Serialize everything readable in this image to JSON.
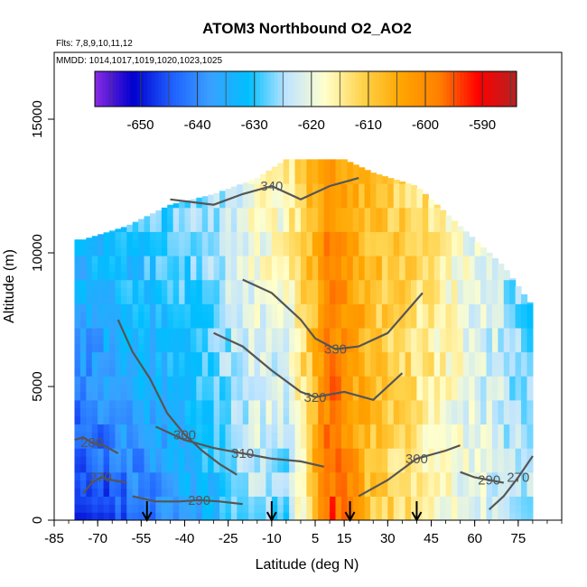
{
  "chart_data": {
    "type": "heatmap",
    "title": "ATOM3 Northbound O2_AO2",
    "flights_label": "Flts: 7,8,9,10,11,12",
    "dates_label": "MMDD: 1014,1017,1019,1020,1023,1025",
    "xlabel": "Latitude (deg N)",
    "ylabel": "Altitude (m)",
    "xlim": [
      -85,
      90
    ],
    "ylim": [
      0,
      17500
    ],
    "x_ticks": [
      "-85",
      "-70",
      "-55",
      "-40",
      "-25",
      "-10",
      "5",
      "15",
      "30",
      "45",
      "60",
      "75"
    ],
    "x_tick_values": [
      -85,
      -70,
      -55,
      -40,
      -25,
      -10,
      5,
      15,
      30,
      45,
      60,
      75
    ],
    "y_ticks": [
      "0",
      "5000",
      "10000",
      "15000"
    ],
    "y_tick_values": [
      0,
      5000,
      10000,
      15000
    ],
    "colorbar": {
      "range": [
        -658,
        -584
      ],
      "ticks": [
        "-650",
        "-640",
        "-630",
        "-620",
        "-610",
        "-600",
        "-590"
      ],
      "tick_values": [
        -650,
        -640,
        -630,
        -620,
        -610,
        -600,
        -590
      ],
      "colors": [
        "#8a2be2",
        "#0000cd",
        "#1e5fff",
        "#3aa0ff",
        "#00bfff",
        "#bfe4ff",
        "#ffffcc",
        "#ffd24a",
        "#ffa500",
        "#ff7f00",
        "#ff0000",
        "#b22222"
      ]
    },
    "field_profile": {
      "note_lat": [
        -75,
        -60,
        -45,
        -30,
        -15,
        -5,
        5,
        10,
        15,
        25,
        40,
        55,
        70,
        80
      ],
      "surface_value": [
        -652,
        -645,
        -640,
        -633,
        -625,
        -630,
        -606,
        -594,
        -598,
        -610,
        -615,
        -620,
        -622,
        -625
      ],
      "upper_value": [
        -632,
        -630,
        -628,
        -625,
        -618,
        -615,
        -607,
        -600,
        -603,
        -608,
        -612,
        -618,
        -625,
        -628
      ],
      "top_altitude": [
        10500,
        11000,
        11800,
        12200,
        12800,
        13500,
        13500,
        13500,
        13500,
        13000,
        12500,
        11000,
        9500,
        8000
      ]
    },
    "contours": [
      {
        "label": "270",
        "lat": [
          -75,
          -72,
          -69,
          -65,
          -60
        ],
        "alt": [
          1000,
          1400,
          1600,
          1500,
          1400
        ]
      },
      {
        "label": "280",
        "lat": [
          -78,
          -75,
          -72,
          -68,
          -63
        ],
        "alt": [
          3000,
          3100,
          2900,
          2800,
          2500
        ]
      },
      {
        "label": "290",
        "lat": [
          -58,
          -50,
          -42,
          -35,
          -28,
          -20
        ],
        "alt": [
          900,
          700,
          700,
          750,
          700,
          600
        ]
      },
      {
        "label": "300",
        "lat": [
          -63,
          -58,
          -52,
          -46,
          -40,
          -34,
          -28,
          -22
        ],
        "alt": [
          7500,
          6300,
          5300,
          4000,
          3200,
          2600,
          2100,
          1700
        ]
      },
      {
        "label": "310",
        "lat": [
          -50,
          -40,
          -30,
          -20,
          -10,
          0,
          8
        ],
        "alt": [
          3500,
          3000,
          2700,
          2500,
          2300,
          2200,
          2000
        ]
      },
      {
        "label": "320",
        "lat": [
          -30,
          -20,
          -10,
          0,
          5,
          15,
          25,
          35
        ],
        "alt": [
          7000,
          6500,
          5600,
          4800,
          4600,
          4800,
          4500,
          5500
        ]
      },
      {
        "label": "330",
        "lat": [
          -20,
          -10,
          0,
          5,
          12,
          20,
          30,
          42
        ],
        "alt": [
          9000,
          8500,
          7500,
          6800,
          6400,
          6500,
          7000,
          8500
        ]
      },
      {
        "label": "340",
        "lat": [
          -45,
          -30,
          -20,
          -10,
          0,
          10,
          20
        ],
        "alt": [
          12000,
          11800,
          12200,
          12500,
          12000,
          12500,
          12800
        ]
      },
      {
        "label": "300",
        "lat": [
          20,
          30,
          40,
          50,
          55
        ],
        "alt": [
          900,
          1500,
          2300,
          2600,
          2800
        ]
      },
      {
        "label": "290",
        "lat": [
          55,
          60,
          65,
          70
        ],
        "alt": [
          1800,
          1600,
          1500,
          1400
        ]
      },
      {
        "label": "270",
        "lat": [
          65,
          70,
          75,
          80
        ],
        "alt": [
          400,
          900,
          1600,
          2400
        ]
      }
    ],
    "flight_markers_lat": [
      -53,
      -10,
      17,
      40
    ],
    "grid": false,
    "legend": "top-inside colorbar"
  }
}
